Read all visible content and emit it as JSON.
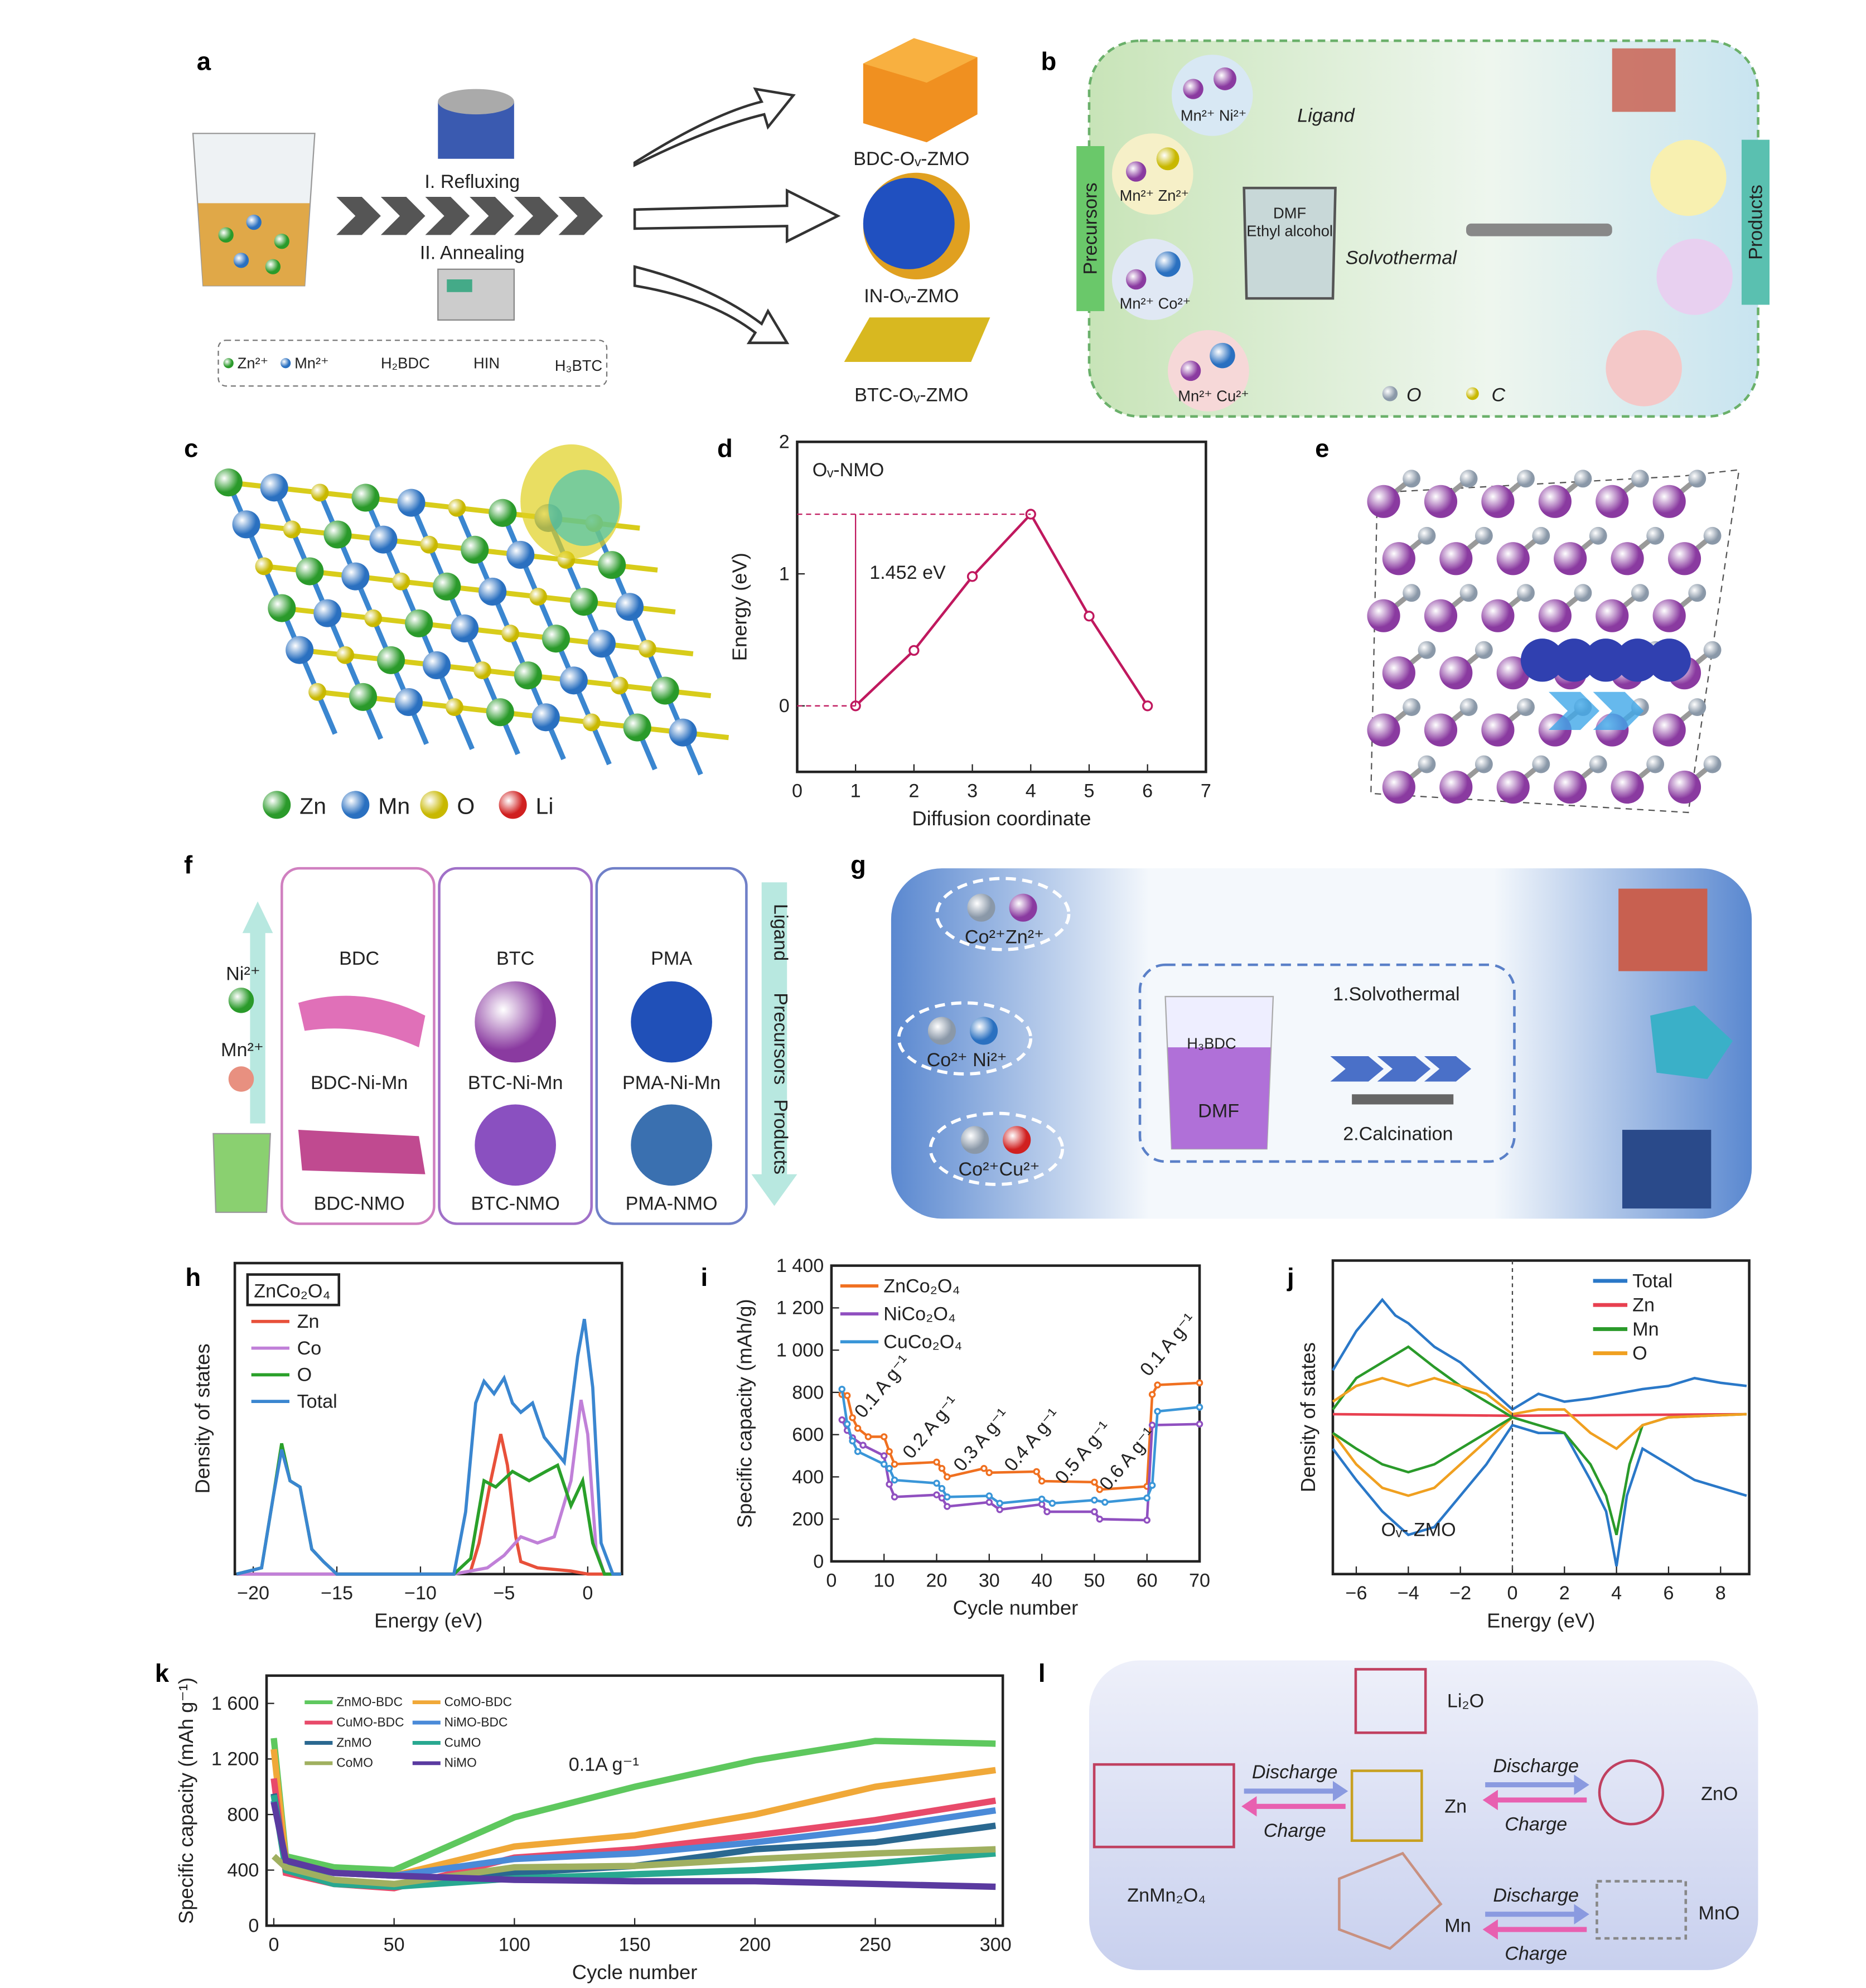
{
  "panels": {
    "a": {
      "label": "a",
      "step1": "I. Refluxing",
      "step2": "II. Annealing",
      "legend": [
        "Zn²⁺",
        "Mn²⁺",
        "H₂BDC",
        "HIN",
        "H₃BTC"
      ],
      "products": [
        "BDC-Oᵥ-ZMO",
        "IN-Oᵥ-ZMO",
        "BTC-Oᵥ-ZMO"
      ]
    },
    "b": {
      "label": "b",
      "precursors": "Precursors",
      "products": "Products",
      "ligand": "Ligand",
      "solvent": "DMF\nEthyl alcohol",
      "solvent1": "DMF",
      "solvent2": "Ethyl alcohol",
      "method": "Solvothermal",
      "ions": [
        "Mn²⁺ Ni²⁺",
        "Mn²⁺ Zn²⁺",
        "Mn²⁺ Co²⁺",
        "Mn²⁺ Cu²⁺"
      ],
      "legend": [
        "O",
        "C"
      ]
    },
    "c": {
      "label": "c",
      "legend": [
        "Zn",
        "Mn",
        "O",
        "Li"
      ],
      "colors": [
        "#3fae3f",
        "#3a86d0",
        "#d8cc1a",
        "#d83030"
      ]
    },
    "e": {
      "label": "e"
    },
    "f": {
      "label": "f",
      "ions": [
        "Ni²⁺",
        "Mn²⁺"
      ],
      "ligands": [
        "BDC",
        "BTC",
        "PMA"
      ],
      "intermediates": [
        "BDC-Ni-Mn",
        "BTC-Ni-Mn",
        "PMA-Ni-Mn"
      ],
      "products": [
        "BDC-NMO",
        "BTC-NMO",
        "PMA-NMO"
      ],
      "arrow": [
        "Ligand",
        "Precursors",
        "Products"
      ]
    },
    "g": {
      "label": "g",
      "ions": [
        "Co²⁺Zn²⁺",
        "Co²⁺ Ni²⁺",
        "Co²⁺Cu²⁺"
      ],
      "beaker": [
        "H₃BDC",
        "DMF"
      ],
      "step1": "1.Solvothermal",
      "step2": "2.Calcination"
    },
    "l": {
      "label": "l",
      "species": [
        "Li₂O",
        "Zn",
        "ZnO",
        "ZnMn₂O₄",
        "Mn",
        "MnO"
      ],
      "discharge": "Discharge",
      "charge": "Charge"
    }
  },
  "chart_data": [
    {
      "id": "d",
      "label": "d",
      "type": "line",
      "title": "Oᵥ-NMO",
      "xlabel": "Diffusion coordinate",
      "ylabel": "Energy (eV)",
      "xlim": [
        0,
        7
      ],
      "ylim": [
        -0.5,
        2
      ],
      "xticks": [
        0,
        1,
        2,
        3,
        4,
        5,
        6,
        7
      ],
      "yticks": [
        0,
        1,
        2
      ],
      "annotation": "1.452 eV",
      "color": "#c0185e",
      "x": [
        1,
        2,
        3,
        4,
        5,
        6
      ],
      "y": [
        0,
        0.42,
        0.98,
        1.452,
        0.68,
        0
      ]
    },
    {
      "id": "h",
      "label": "h",
      "type": "line",
      "title": "ZnCo₂O₄",
      "xlabel": "Energy (eV)",
      "ylabel": "Density of states",
      "xlim": [
        -21.1,
        2.05
      ],
      "ylim": [
        0,
        1
      ],
      "xticks": [
        -20,
        -15,
        -10,
        -5,
        0
      ],
      "xticklabels": [
        "−20",
        "−15",
        "−10",
        "−5",
        "0"
      ],
      "series": [
        {
          "name": "Zn",
          "color": "#e8503a",
          "x": [
            -21,
            -8,
            -7,
            -6.5,
            -5.8,
            -5.2,
            -4.8,
            -4.3,
            -4,
            -3,
            -1,
            0,
            2
          ],
          "y": [
            0,
            0,
            0.01,
            0.1,
            0.3,
            0.45,
            0.35,
            0.12,
            0.04,
            0.02,
            0.01,
            0,
            0
          ]
        },
        {
          "name": "Co",
          "color": "#c080d8",
          "x": [
            -21,
            -8,
            -6,
            -5,
            -4,
            -3,
            -2,
            -1,
            -0.4,
            0,
            0.5,
            1,
            2
          ],
          "y": [
            0,
            0,
            0.02,
            0.06,
            0.12,
            0.1,
            0.12,
            0.3,
            0.56,
            0.45,
            0.08,
            0,
            0
          ]
        },
        {
          "name": "O",
          "color": "#2aa02a",
          "x": [
            -21,
            -19.5,
            -18.8,
            -18.3,
            -17.8,
            -17.2,
            -16.5,
            -15.8,
            -15,
            -8,
            -7,
            -6.2,
            -5.5,
            -4.5,
            -3.5,
            -2.5,
            -1.8,
            -1,
            -0.3,
            0.3,
            1,
            2
          ],
          "y": [
            0,
            0.02,
            0.25,
            0.42,
            0.3,
            0.28,
            0.08,
            0.04,
            0,
            0,
            0.05,
            0.3,
            0.28,
            0.33,
            0.3,
            0.33,
            0.35,
            0.22,
            0.3,
            0.1,
            0,
            0
          ]
        },
        {
          "name": "Total",
          "color": "#3a86d0",
          "x": [
            -21,
            -19.5,
            -18.8,
            -18.3,
            -17.8,
            -17.2,
            -16.5,
            -15.8,
            -15,
            -8,
            -7.3,
            -6.7,
            -6.2,
            -5.6,
            -5,
            -4.5,
            -4,
            -3.3,
            -2.6,
            -2,
            -1.4,
            -0.6,
            -0.2,
            0.3,
            0.8,
            1.5,
            2
          ],
          "y": [
            0,
            0.02,
            0.25,
            0.4,
            0.3,
            0.28,
            0.08,
            0.04,
            0,
            0,
            0.2,
            0.55,
            0.62,
            0.58,
            0.63,
            0.55,
            0.52,
            0.55,
            0.44,
            0.4,
            0.36,
            0.7,
            0.82,
            0.6,
            0.1,
            0,
            0
          ]
        }
      ]
    },
    {
      "id": "i",
      "label": "i",
      "type": "line",
      "xlabel": "Cycle number",
      "ylabel": "Specific capacity (mAh/g)",
      "xlim": [
        0,
        70
      ],
      "ylim": [
        0,
        1400
      ],
      "xticks": [
        0,
        10,
        20,
        30,
        40,
        50,
        60,
        70
      ],
      "yticks": [
        0,
        200,
        400,
        600,
        800,
        1000,
        1200,
        1400
      ],
      "yticklabels": [
        "0",
        "200",
        "400",
        "600",
        "800",
        "1 000",
        "1 200",
        "1 400"
      ],
      "rate_labels": [
        "0.1 A g⁻¹",
        "0.2 A g⁻¹",
        "0.3 A g⁻¹",
        "0.4 A g⁻¹",
        "0.5 A g⁻¹",
        "0.6 A g⁻¹",
        "0.1 A g⁻¹"
      ],
      "series": [
        {
          "name": "ZnCo₂O₄",
          "color": "#f07020",
          "x": [
            2,
            3,
            4,
            5,
            7,
            10,
            11,
            12,
            20,
            21,
            22,
            29,
            30,
            39,
            40,
            50,
            51,
            60,
            61,
            62,
            70
          ],
          "y": [
            790,
            785,
            680,
            630,
            590,
            590,
            520,
            460,
            470,
            440,
            400,
            440,
            420,
            425,
            380,
            375,
            340,
            355,
            790,
            835,
            845
          ]
        },
        {
          "name": "NiCo₂O₄",
          "color": "#9050c0",
          "x": [
            2,
            3,
            4,
            6,
            10,
            11,
            12,
            20,
            21,
            22,
            30,
            32,
            40,
            41,
            50,
            51,
            60,
            61,
            70
          ],
          "y": [
            670,
            620,
            585,
            550,
            500,
            365,
            305,
            315,
            300,
            260,
            280,
            245,
            270,
            235,
            235,
            200,
            195,
            645,
            650
          ]
        },
        {
          "name": "CuCo₂O₄",
          "color": "#3a96d8",
          "x": [
            2,
            3,
            4,
            5,
            10,
            11,
            12,
            20,
            21,
            22,
            30,
            32,
            40,
            42,
            50,
            52,
            60,
            61,
            62,
            70
          ],
          "y": [
            815,
            650,
            570,
            520,
            460,
            440,
            385,
            370,
            345,
            305,
            310,
            275,
            295,
            275,
            290,
            280,
            300,
            360,
            710,
            730
          ]
        }
      ]
    },
    {
      "id": "j",
      "label": "j",
      "type": "line",
      "xlabel": "Energy (eV)",
      "ylabel": "Density of states",
      "annotation": "Oᵥ- ZMO",
      "xlim": [
        -6.9,
        9.1
      ],
      "ylim": [
        -1,
        1
      ],
      "xticks": [
        -6,
        -4,
        -2,
        0,
        2,
        4,
        6,
        8
      ],
      "xticklabels": [
        "−6",
        "−4",
        "−2",
        "0",
        "2",
        "4",
        "6",
        "8"
      ],
      "series": [
        {
          "name": "Total",
          "color": "#2a78c8",
          "x": [
            -6.9,
            -6,
            -5,
            -4.5,
            -4,
            -3,
            -2,
            -1,
            0,
            1,
            2,
            3,
            4,
            5,
            6,
            7,
            8,
            9
          ],
          "y": [
            0.3,
            0.55,
            0.75,
            0.65,
            0.6,
            0.45,
            0.35,
            0.2,
            0.05,
            0.15,
            0.1,
            0.12,
            0.15,
            0.18,
            0.2,
            0.25,
            0.22,
            0.2
          ]
        },
        {
          "name": "Total-down",
          "color": "#2a78c8",
          "x": [
            -6.9,
            -6,
            -5,
            -4,
            -3,
            -2,
            -1,
            0,
            1,
            2,
            3,
            3.6,
            4,
            4.4,
            5,
            6,
            7,
            8,
            9
          ],
          "y": [
            -0.2,
            -0.4,
            -0.6,
            -0.75,
            -0.7,
            -0.5,
            -0.3,
            -0.05,
            -0.1,
            -0.1,
            -0.4,
            -0.6,
            -0.95,
            -0.5,
            -0.2,
            -0.3,
            -0.4,
            -0.45,
            -0.5
          ]
        },
        {
          "name": "Zn",
          "color": "#e84050",
          "x": [
            -6.9,
            0,
            9
          ],
          "y": [
            0.02,
            0.01,
            0.02
          ]
        },
        {
          "name": "Mn",
          "color": "#2a9a2a",
          "x": [
            -6.9,
            -6,
            -5,
            -4,
            -3,
            -2,
            -1,
            0,
            1,
            2,
            3,
            3.6,
            4,
            4.5,
            5,
            6,
            9
          ],
          "y": [
            0.05,
            0.25,
            0.35,
            0.45,
            0.32,
            0.2,
            0.1,
            0,
            -0.05,
            -0.1,
            -0.3,
            -0.5,
            -0.75,
            -0.3,
            -0.05,
            0,
            0.02
          ]
        },
        {
          "name": "O",
          "color": "#f0a020",
          "x": [
            -6.9,
            -6,
            -5,
            -4,
            -3,
            -2,
            -1,
            0,
            1,
            2,
            3,
            4,
            5,
            6,
            9
          ],
          "y": [
            0.1,
            0.2,
            0.25,
            0.2,
            0.25,
            0.2,
            0.15,
            0.02,
            0.05,
            0.05,
            -0.1,
            -0.2,
            -0.05,
            0,
            0.02
          ]
        },
        {
          "name": "O-down",
          "color": "#f0a020",
          "x": [
            -6.9,
            -6,
            -5,
            -4,
            -3,
            -2,
            -1,
            0
          ],
          "y": [
            -0.1,
            -0.3,
            -0.45,
            -0.5,
            -0.45,
            -0.3,
            -0.15,
            0
          ]
        },
        {
          "name": "Mn-down",
          "color": "#2a9a2a",
          "x": [
            -6.9,
            -6,
            -5,
            -4,
            -3,
            -2,
            -1,
            0
          ],
          "y": [
            -0.1,
            -0.2,
            -0.3,
            -0.35,
            -0.3,
            -0.2,
            -0.1,
            0
          ]
        }
      ],
      "legend": [
        "Total",
        "Zn",
        "Mn",
        "O"
      ],
      "legend_colors": [
        "#2a78c8",
        "#e84050",
        "#2a9a2a",
        "#f0a020"
      ]
    },
    {
      "id": "k",
      "label": "k",
      "type": "line",
      "annotation": "0.1A g⁻¹",
      "xlabel": "Cycle number",
      "ylabel": "Specific capacity (mAh g⁻¹)",
      "xlim": [
        -3,
        303
      ],
      "ylim": [
        0,
        1800
      ],
      "xticks": [
        0,
        50,
        100,
        150,
        200,
        250,
        300
      ],
      "yticks": [
        0,
        400,
        800,
        1200,
        1600
      ],
      "yticklabels": [
        "0",
        "400",
        "800",
        "1 200",
        "1 600"
      ],
      "x": [
        0,
        5,
        25,
        50,
        100,
        150,
        200,
        250,
        300
      ],
      "series": [
        {
          "name": "ZnMO-BDC",
          "color": "#5ec85e",
          "y": [
            1350,
            500,
            420,
            400,
            780,
            1000,
            1190,
            1330,
            1310
          ]
        },
        {
          "name": "CoMO-BDC",
          "color": "#f0a838",
          "y": [
            1270,
            470,
            380,
            360,
            570,
            650,
            800,
            1000,
            1120
          ]
        },
        {
          "name": "CuMO-BDC",
          "color": "#e84a6a",
          "y": [
            1060,
            380,
            300,
            270,
            490,
            550,
            650,
            760,
            900
          ]
        },
        {
          "name": "NiMO-BDC",
          "color": "#4a8ad8",
          "y": [
            900,
            450,
            380,
            360,
            480,
            520,
            600,
            700,
            830
          ]
        },
        {
          "name": "ZnMO",
          "color": "#2a6890",
          "y": [
            950,
            430,
            330,
            290,
            380,
            430,
            550,
            600,
            720
          ]
        },
        {
          "name": "CuMO",
          "color": "#28a890",
          "y": [
            940,
            400,
            300,
            280,
            340,
            370,
            400,
            450,
            520
          ]
        },
        {
          "name": "CoMO",
          "color": "#a0b060",
          "y": [
            500,
            420,
            330,
            300,
            420,
            430,
            480,
            520,
            550
          ]
        },
        {
          "name": "NiMO",
          "color": "#5a3aa0",
          "y": [
            890,
            470,
            380,
            360,
            330,
            320,
            320,
            300,
            280
          ]
        }
      ]
    }
  ]
}
